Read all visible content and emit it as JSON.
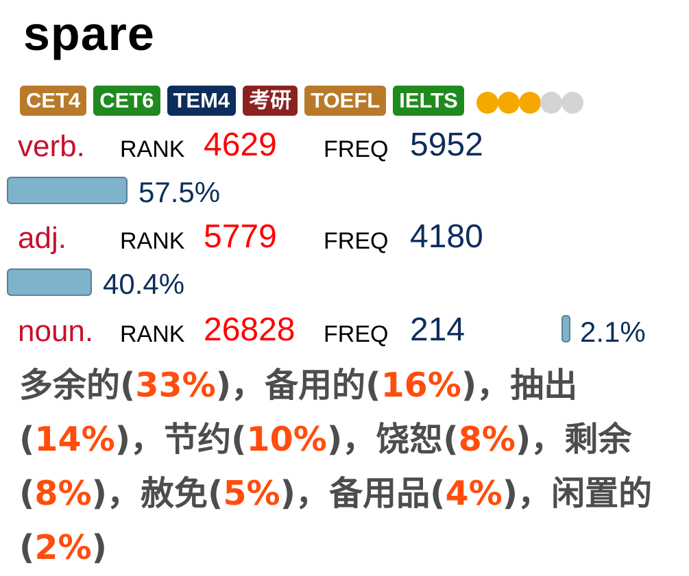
{
  "word": "spare",
  "tags": [
    {
      "label": "CET4",
      "color": "#b87a2a"
    },
    {
      "label": "CET6",
      "color": "#1f8a1f"
    },
    {
      "label": "TEM4",
      "color": "#0d2d5c"
    },
    {
      "label": "考研",
      "color": "#8b2222"
    },
    {
      "label": "TOEFL",
      "color": "#b87a2a"
    },
    {
      "label": "IELTS",
      "color": "#1f8a1f"
    }
  ],
  "star_rating": {
    "filled": 3,
    "total": 5,
    "filled_color": "#f5a800",
    "empty_color": "#d4d4d4"
  },
  "parts_of_speech": [
    {
      "pos": "verb.",
      "rank_label": "RANK",
      "rank": "4629",
      "freq_label": "FREQ",
      "freq": "5952",
      "percent_text": "57.5%",
      "percent": 57.5
    },
    {
      "pos": "adj.",
      "rank_label": "RANK",
      "rank": "5779",
      "freq_label": "FREQ",
      "freq": "4180",
      "percent_text": "40.4%",
      "percent": 40.4
    },
    {
      "pos": "noun.",
      "rank_label": "RANK",
      "rank": "26828",
      "freq_label": "FREQ",
      "freq": "214",
      "percent_text": "2.1%",
      "percent": 2.1
    }
  ],
  "definitions": [
    {
      "text": "多余的",
      "pct": "33%"
    },
    {
      "text": "备用的",
      "pct": "16%"
    },
    {
      "text": "抽出",
      "pct": "14%"
    },
    {
      "text": "节约",
      "pct": "10%"
    },
    {
      "text": "饶恕",
      "pct": "8%"
    },
    {
      "text": "剩余",
      "pct": "8%"
    },
    {
      "text": "赦免",
      "pct": "5%"
    },
    {
      "text": "备用品",
      "pct": "4%"
    },
    {
      "text": "闲置的",
      "pct": "2%"
    }
  ]
}
